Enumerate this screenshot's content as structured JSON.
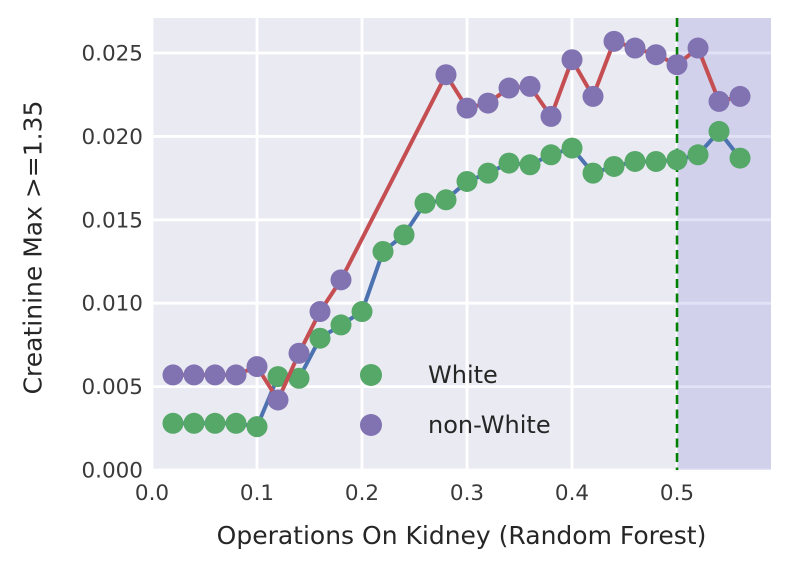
{
  "figure": {
    "xlabel": "Operations On Kidney (Random Forest)",
    "ylabel": "Creatinine Max >=1.35"
  },
  "chart_data": {
    "type": "line",
    "title": "",
    "xlabel": "Operations On Kidney (Random Forest)",
    "ylabel": "Creatinine Max >=1.35",
    "xlim": [
      0,
      0.5895
    ],
    "ylim": [
      0,
      0.0271
    ],
    "xticks": [
      0.0,
      0.1,
      0.2,
      0.3,
      0.4,
      0.5
    ],
    "xtick_labels": [
      "0.0",
      "0.1",
      "0.2",
      "0.3",
      "0.4",
      "0.5"
    ],
    "yticks": [
      0.0,
      0.005,
      0.01,
      0.015,
      0.02,
      0.025
    ],
    "ytick_labels": [
      "0.000",
      "0.005",
      "0.010",
      "0.015",
      "0.020",
      "0.025"
    ],
    "grid": true,
    "plot_background": "#EAEAF2",
    "grid_color": "#FFFFFF",
    "tick_label_color": "#3a3a3a",
    "shaded_region": {
      "from_x": 0.5,
      "to_x": 0.5895,
      "color_rgba": [
        123,
        123,
        213,
        0.22
      ]
    },
    "vline": {
      "x": 0.5,
      "color": "#008000",
      "style": "dashed"
    },
    "legend_position": "lower right of center",
    "series": [
      {
        "name": "White",
        "marker_color": "#55A868",
        "line_color": "#4C72B0",
        "x": [
          0.02,
          0.04,
          0.06,
          0.08,
          0.1,
          0.12,
          0.14,
          0.16,
          0.18,
          0.2,
          0.22,
          0.24,
          0.26,
          0.28,
          0.3,
          0.32,
          0.34,
          0.36,
          0.38,
          0.4,
          0.42,
          0.44,
          0.46,
          0.48,
          0.5,
          0.52,
          0.54,
          0.56
        ],
        "y": [
          0.0028,
          0.0028,
          0.0028,
          0.0028,
          0.0026,
          0.0056,
          0.0055,
          0.0079,
          0.0087,
          0.0095,
          0.0131,
          0.0141,
          0.016,
          0.0162,
          0.0173,
          0.0178,
          0.0184,
          0.0183,
          0.0189,
          0.0193,
          0.0178,
          0.0182,
          0.0185,
          0.0185,
          0.0186,
          0.0189,
          0.0203,
          0.0187
        ]
      },
      {
        "name": "non-White",
        "marker_color": "#8172B2",
        "line_color": "#C44E52",
        "x": [
          0.02,
          0.04,
          0.06,
          0.08,
          0.1,
          0.12,
          0.14,
          0.16,
          0.18,
          0.28,
          0.3,
          0.32,
          0.34,
          0.36,
          0.38,
          0.4,
          0.42,
          0.44,
          0.46,
          0.48,
          0.5,
          0.52,
          0.54,
          0.56
        ],
        "y": [
          0.0057,
          0.0057,
          0.0057,
          0.0057,
          0.0062,
          0.0042,
          0.007,
          0.0095,
          0.0114,
          0.0237,
          0.0217,
          0.022,
          0.0229,
          0.023,
          0.0212,
          0.0246,
          0.0224,
          0.0257,
          0.0253,
          0.0249,
          0.0243,
          0.0253,
          0.0221,
          0.0224
        ]
      }
    ]
  }
}
